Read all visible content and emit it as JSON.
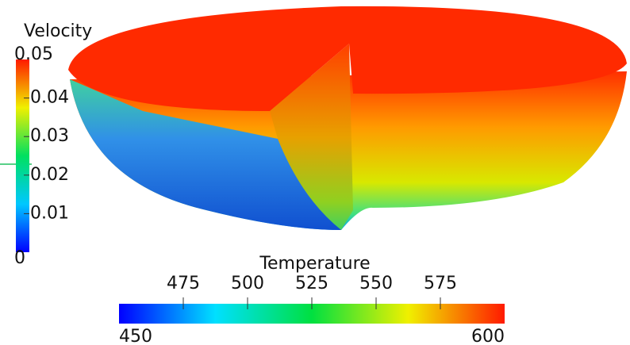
{
  "velocity_legend": {
    "title": "Velocity",
    "min": 0,
    "max": 0.05,
    "ticks": [
      0.01,
      0.02,
      0.03,
      0.04
    ]
  },
  "temperature_legend": {
    "title": "Temperature",
    "min": 450,
    "max": 600,
    "ticks": [
      475,
      500,
      525,
      550,
      575
    ]
  }
}
